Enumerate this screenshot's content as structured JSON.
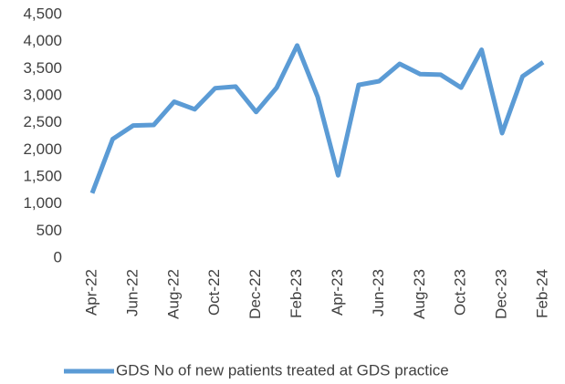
{
  "chart_data": {
    "type": "line",
    "categories": [
      "Apr-22",
      null,
      "Jun-22",
      null,
      "Aug-22",
      null,
      "Oct-22",
      null,
      "Dec-22",
      null,
      "Feb-23",
      null,
      "Apr-23",
      null,
      "Jun-23",
      null,
      "Aug-23",
      null,
      "Oct-23",
      null,
      "Dec-23",
      null,
      "Feb-24"
    ],
    "series": [
      {
        "name": "GDS No of new patients treated at GDS practice",
        "color": "#5b9bd5",
        "values": [
          1200,
          2200,
          2450,
          2460,
          2890,
          2750,
          3140,
          3170,
          2700,
          3150,
          3930,
          2980,
          1530,
          3200,
          3270,
          3590,
          3400,
          3390,
          3150,
          3850,
          2310,
          3360,
          3620
        ]
      }
    ],
    "ylim": [
      0,
      4500
    ],
    "yticks": [
      0,
      500,
      {
        "value": 1000,
        "label": "1,000"
      },
      {
        "value": 1500,
        "label": "1,500"
      },
      {
        "value": 2000,
        "label": "2,000"
      },
      {
        "value": 2500,
        "label": "2,500"
      },
      {
        "value": 3000,
        "label": "3,000"
      },
      {
        "value": 3500,
        "label": "3,500"
      },
      {
        "value": 4000,
        "label": "4,000"
      },
      {
        "value": 4500,
        "label": "4,500"
      }
    ],
    "grid": false,
    "legend": "bottom"
  }
}
